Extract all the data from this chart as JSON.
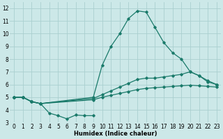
{
  "xlabel": "Humidex (Indice chaleur)",
  "bg_color": "#cce8e8",
  "grid_color": "#aacfcf",
  "line_color": "#1a7a6a",
  "xlim": [
    -0.5,
    23.5
  ],
  "ylim": [
    3,
    12.5
  ],
  "xticks": [
    0,
    1,
    2,
    3,
    4,
    5,
    6,
    7,
    8,
    9,
    10,
    11,
    12,
    13,
    14,
    15,
    16,
    17,
    18,
    19,
    20,
    21,
    22,
    23
  ],
  "yticks": [
    3,
    4,
    5,
    6,
    7,
    8,
    9,
    10,
    11,
    12
  ],
  "line1_x": [
    0,
    1,
    2,
    3,
    4,
    5,
    6,
    7,
    8,
    9
  ],
  "line1_y": [
    5.0,
    5.0,
    4.65,
    4.5,
    3.75,
    3.55,
    3.3,
    3.6,
    3.55,
    3.55
  ],
  "line2_x": [
    0,
    1,
    2,
    3,
    9,
    10,
    11,
    12,
    13,
    14,
    15,
    16,
    17,
    18,
    19,
    20,
    21,
    22,
    23
  ],
  "line2_y": [
    5.0,
    5.0,
    4.65,
    4.5,
    5.0,
    7.5,
    9.0,
    10.0,
    11.2,
    11.8,
    11.7,
    10.5,
    9.3,
    8.5,
    8.0,
    7.0,
    6.7,
    6.2,
    6.0
  ],
  "line3_x": [
    0,
    1,
    2,
    3,
    9,
    10,
    11,
    12,
    13,
    14,
    15,
    16,
    17,
    18,
    19,
    20,
    21,
    22,
    23
  ],
  "line3_y": [
    5.0,
    5.0,
    4.65,
    4.5,
    4.9,
    5.2,
    5.5,
    5.8,
    6.1,
    6.4,
    6.5,
    6.5,
    6.6,
    6.7,
    6.8,
    7.0,
    6.7,
    6.3,
    6.0
  ],
  "line4_x": [
    0,
    1,
    2,
    3,
    9,
    10,
    11,
    12,
    13,
    14,
    15,
    16,
    17,
    18,
    19,
    20,
    21,
    22,
    23
  ],
  "line4_y": [
    5.0,
    5.0,
    4.65,
    4.5,
    4.8,
    5.0,
    5.15,
    5.3,
    5.45,
    5.6,
    5.7,
    5.75,
    5.8,
    5.85,
    5.9,
    5.95,
    5.9,
    5.85,
    5.8
  ],
  "marker": "D",
  "markersize": 1.8,
  "linewidth": 0.9,
  "xlabel_fontsize": 6,
  "tick_fontsize": 5.5
}
